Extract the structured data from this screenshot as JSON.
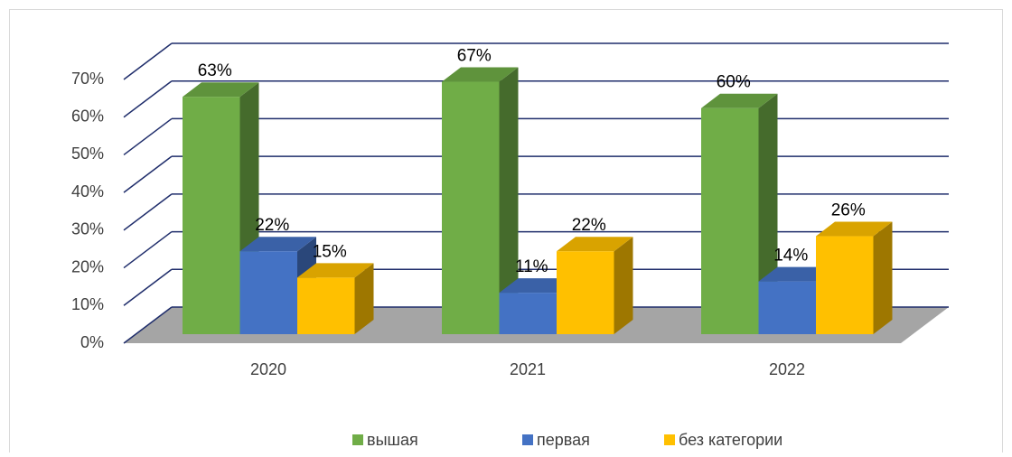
{
  "chart_data": {
    "type": "bar3d",
    "categories": [
      "2020",
      "2021",
      "2022"
    ],
    "series": [
      {
        "name": "вышая",
        "color": "#70ad47",
        "values": [
          63,
          67,
          60
        ],
        "value_labels": [
          "63%",
          "67%",
          "60%"
        ]
      },
      {
        "name": "первая",
        "color": "#4472c4",
        "values": [
          22,
          11,
          14
        ],
        "value_labels": [
          "22%",
          "11%",
          "14%"
        ]
      },
      {
        "name": "без категории",
        "color": "#ffc000",
        "values": [
          15,
          22,
          26
        ],
        "value_labels": [
          "15%",
          "22%",
          "26%"
        ]
      }
    ],
    "ylim": [
      0,
      70
    ],
    "yticks": [
      {
        "value": 0,
        "label": "0%"
      },
      {
        "value": 10,
        "label": "10%"
      },
      {
        "value": 20,
        "label": "20%"
      },
      {
        "value": 30,
        "label": "30%"
      },
      {
        "value": 40,
        "label": "40%"
      },
      {
        "value": 50,
        "label": "50%"
      },
      {
        "value": 60,
        "label": "60%"
      },
      {
        "value": 70,
        "label": "70%"
      }
    ],
    "grid": true,
    "legend": "bottom"
  }
}
